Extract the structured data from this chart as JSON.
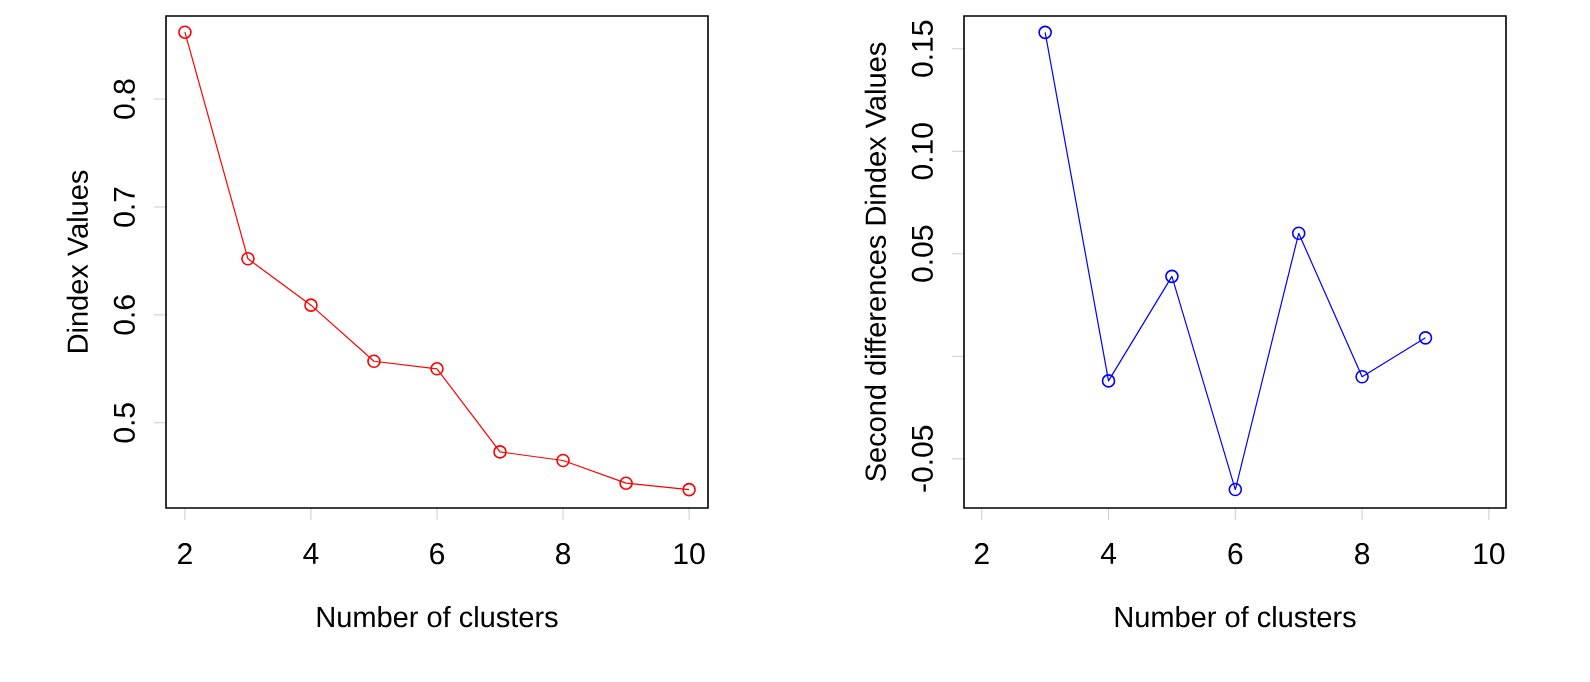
{
  "chart_data": [
    {
      "type": "line",
      "xlabel": "Number of clusters",
      "ylabel": "Dindex Values",
      "x": [
        2,
        3,
        4,
        5,
        6,
        7,
        8,
        9,
        10
      ],
      "color": "#ff0000",
      "marker": "circle",
      "values": [
        0.862,
        0.652,
        0.609,
        0.557,
        0.55,
        0.473,
        0.465,
        0.444,
        0.438
      ],
      "xlim": [
        1.7,
        10.3
      ],
      "ylim": [
        0.421,
        0.877
      ],
      "xticks": [
        2,
        4,
        6,
        8,
        10
      ],
      "yticks": [
        0.5,
        0.6,
        0.7,
        0.8
      ]
    },
    {
      "type": "line",
      "xlabel": "Number of clusters",
      "ylabel": "Second differences Dindex Values",
      "x": [
        3,
        4,
        5,
        6,
        7,
        8,
        9
      ],
      "color": "#0000ff",
      "marker": "circle",
      "values": [
        0.158,
        -0.012,
        0.039,
        -0.065,
        0.06,
        -0.01,
        0.009
      ],
      "xlim": [
        1.72,
        10.27
      ],
      "ylim": [
        -0.074,
        0.166
      ],
      "xticks": [
        2,
        4,
        6,
        8,
        10
      ],
      "yticks": [
        -0.05,
        {
          "value": 0,
          "label": null
        },
        0.05,
        {
          "value": 0.1,
          "label": "0.10"
        },
        0.15
      ]
    }
  ]
}
